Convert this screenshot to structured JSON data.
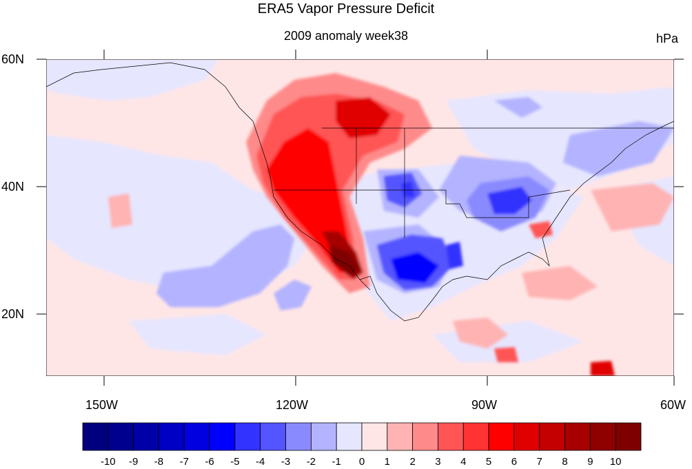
{
  "title": "ERA5 Vapor Pressure Deficit",
  "subtitle": "2009 anomaly week38",
  "units": "hPa",
  "axes": {
    "lon_ticks": [
      "150W",
      "120W",
      "90W",
      "60W"
    ],
    "lat_ticks": [
      "60N",
      "40N",
      "20N"
    ]
  },
  "colorbar": {
    "labels": [
      "-10",
      "-9",
      "-8",
      "-7",
      "-6",
      "-5",
      "-4",
      "-3",
      "-2",
      "-1",
      "0",
      "1",
      "2",
      "3",
      "4",
      "5",
      "6",
      "7",
      "8",
      "9",
      "10"
    ],
    "colors": [
      "#00007f",
      "#00008f",
      "#0000a6",
      "#0000c4",
      "#0000e0",
      "#0000ff",
      "#3333ff",
      "#5555ff",
      "#8a8aff",
      "#b3b3ff",
      "#e6e6ff",
      "#ffe6e6",
      "#ffb3b3",
      "#ff8a8a",
      "#ff5555",
      "#ff3333",
      "#ff0000",
      "#e00000",
      "#c40000",
      "#a60000",
      "#8f0000",
      "#7f0000"
    ]
  },
  "map_data": {
    "region": "North America, 10N–60N, 160W–60W",
    "variable": "Vapor Pressure Deficit anomaly",
    "features": [
      {
        "name": "western US / Mexico high anomaly",
        "level": 8
      },
      {
        "name": "Texas / southern plains low anomaly",
        "level": -6
      },
      {
        "name": "Ohio valley low anomaly",
        "level": -4
      },
      {
        "name": "eastern Pacific low anomaly",
        "level": -2
      }
    ]
  }
}
